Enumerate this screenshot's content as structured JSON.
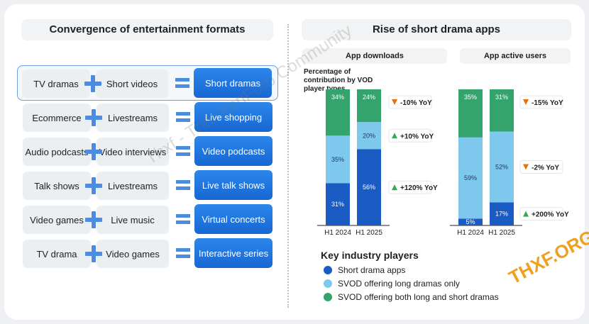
{
  "left": {
    "title": "Convergence of entertainment formats",
    "rows": [
      {
        "a": "TV dramas",
        "b": "Short videos",
        "result": "Short dramas"
      },
      {
        "a": "Ecommerce",
        "b": "Livestreams",
        "result": "Live shopping"
      },
      {
        "a": "Audio podcasts",
        "b": "Video interviews",
        "result": "Video podcasts"
      },
      {
        "a": "Talk shows",
        "b": "Livestreams",
        "result": "Live talk shows"
      },
      {
        "a": "Video games",
        "b": "Live music",
        "result": "Virtual concerts"
      },
      {
        "a": "TV drama",
        "b": "Video games",
        "result": "Interactive series"
      }
    ]
  },
  "right": {
    "title": "Rise of short drama apps",
    "subtitle": "Percentage of contribution by VOD player types",
    "legend_title": "Key industry players"
  },
  "colors": {
    "short_drama": "#1a5cc4",
    "svod_long": "#7ec8ee",
    "svod_both": "#35a46c",
    "up": "#34a853",
    "down": "#e8710a"
  },
  "watermark": {
    "text": "Thxf - Thai XenForo Community",
    "logo": "THXF.ORG"
  },
  "chart_data": [
    {
      "type": "bar",
      "stacked": true,
      "title": "App downloads",
      "categories": [
        "H1 2024",
        "H1 2025"
      ],
      "series": [
        {
          "name": "Short drama apps",
          "values": [
            31,
            56
          ]
        },
        {
          "name": "SVOD offering long dramas only",
          "values": [
            35,
            20
          ]
        },
        {
          "name": "SVOD offering both long and short dramas",
          "values": [
            34,
            24
          ]
        }
      ],
      "yoy": [
        "+120% YoY",
        "+10% YoY",
        "-10% YoY"
      ],
      "ylim": [
        0,
        100
      ]
    },
    {
      "type": "bar",
      "stacked": true,
      "title": "App active users",
      "categories": [
        "H1 2024",
        "H1 2025"
      ],
      "series": [
        {
          "name": "Short drama apps",
          "values": [
            5,
            17
          ]
        },
        {
          "name": "SVOD offering long dramas only",
          "values": [
            59,
            52
          ]
        },
        {
          "name": "SVOD offering both long and short dramas",
          "values": [
            35,
            31
          ]
        }
      ],
      "yoy": [
        "+200% YoY",
        "-2% YoY",
        "-15% YoY"
      ],
      "ylim": [
        0,
        100
      ]
    }
  ]
}
